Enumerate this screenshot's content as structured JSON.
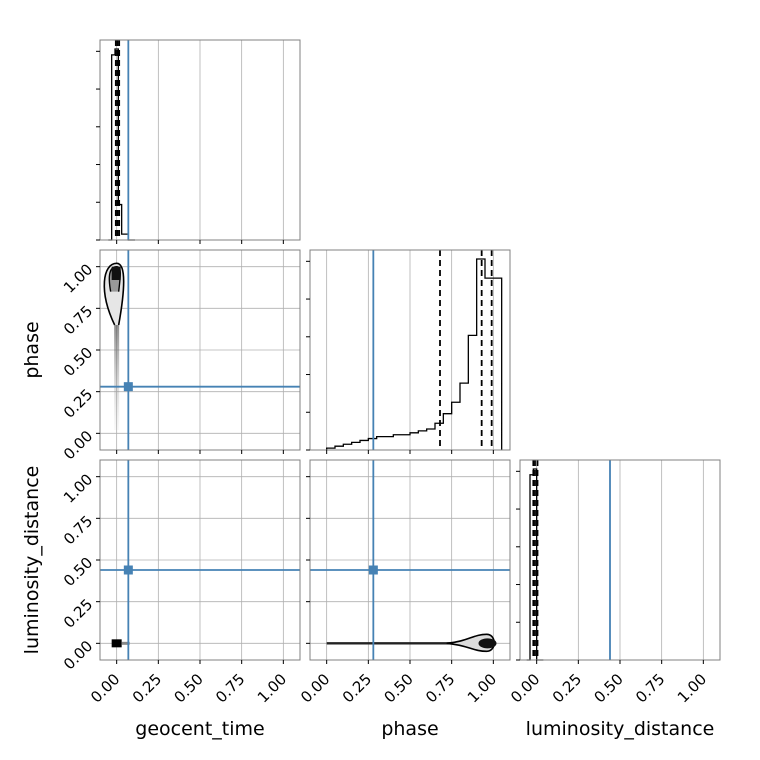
{
  "chart_data": {
    "type": "corner",
    "parameters": [
      "geocent_time",
      "phase",
      "luminosity_distance"
    ],
    "axis_range": [
      -0.1,
      1.1
    ],
    "tick_values": [
      0,
      0.25,
      0.5,
      0.75,
      1
    ],
    "tick_labels": [
      "0.00",
      "0.25",
      "0.50",
      "0.75",
      "1.00"
    ],
    "grid": true,
    "truth_color": "#4682b4",
    "truths": {
      "geocent_time": 0.07,
      "phase": 0.28,
      "luminosity_distance": 0.44
    },
    "histograms": [
      {
        "name": "geocent_time",
        "bin_edges": [
          -0.05,
          -0.03,
          -0.01,
          0.01,
          0.03,
          0.05,
          0.07,
          0.09,
          0.11
        ],
        "counts": [
          0,
          0.94,
          0.97,
          0.18,
          0.03,
          0.03,
          0,
          0
        ],
        "quantiles": [
          -0.005,
          0.005,
          0.015
        ]
      },
      {
        "name": "phase",
        "bin_edges": [
          0.0,
          0.05,
          0.1,
          0.15,
          0.2,
          0.25,
          0.3,
          0.35,
          0.4,
          0.45,
          0.5,
          0.55,
          0.6,
          0.65,
          0.7,
          0.75,
          0.8,
          0.85,
          0.9,
          0.95,
          1.0,
          1.05
        ],
        "counts": [
          0.01,
          0.02,
          0.03,
          0.04,
          0.05,
          0.06,
          0.07,
          0.07,
          0.08,
          0.08,
          0.09,
          0.1,
          0.11,
          0.14,
          0.19,
          0.25,
          0.35,
          0.6,
          1.0,
          0.9,
          0.9
        ],
        "quantiles": [
          0.68,
          0.93,
          0.99
        ]
      },
      {
        "name": "luminosity_distance",
        "bin_edges": [
          -0.06,
          -0.04,
          -0.02,
          0.0,
          0.02,
          0.04
        ],
        "counts": [
          0,
          0.97,
          1.0,
          0,
          0
        ],
        "quantiles": [
          -0.02,
          -0.01,
          0.005
        ]
      }
    ]
  }
}
